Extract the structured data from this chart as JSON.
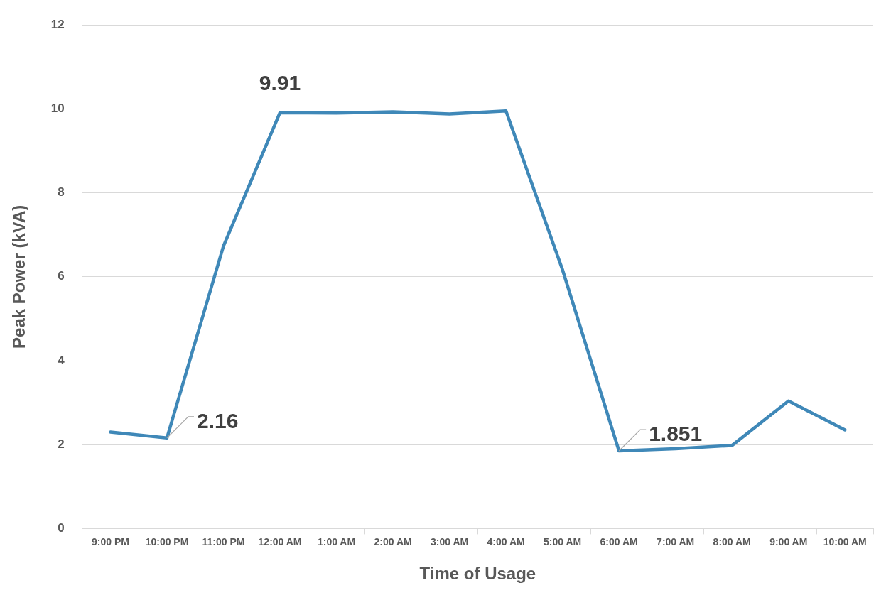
{
  "chart_data": {
    "type": "line",
    "xlabel": "Time of Usage",
    "ylabel": "Peak Power (kVA)",
    "categories": [
      "9:00 PM",
      "10:00 PM",
      "11:00 PM",
      "12:00 AM",
      "1:00 AM",
      "2:00 AM",
      "3:00 AM",
      "4:00 AM",
      "5:00 AM",
      "6:00 AM",
      "7:00 AM",
      "8:00 AM",
      "9:00 AM",
      "10:00 AM"
    ],
    "series": [
      {
        "color": "#3f88b8",
        "values": [
          2.3,
          2.16,
          6.73,
          9.91,
          9.9,
          9.93,
          9.88,
          9.95,
          6.17,
          1.851,
          1.9,
          1.98,
          3.04,
          2.35
        ],
        "value_labels": [
          null,
          "2.16",
          null,
          "9.91",
          null,
          null,
          null,
          null,
          null,
          "1.851",
          null,
          null,
          null,
          null
        ]
      }
    ],
    "ylim": [
      0,
      12
    ],
    "yticks": [
      0,
      2,
      4,
      6,
      8,
      10,
      12
    ],
    "grid": "y",
    "legend": false,
    "marker": "none",
    "line_style": "solid"
  }
}
